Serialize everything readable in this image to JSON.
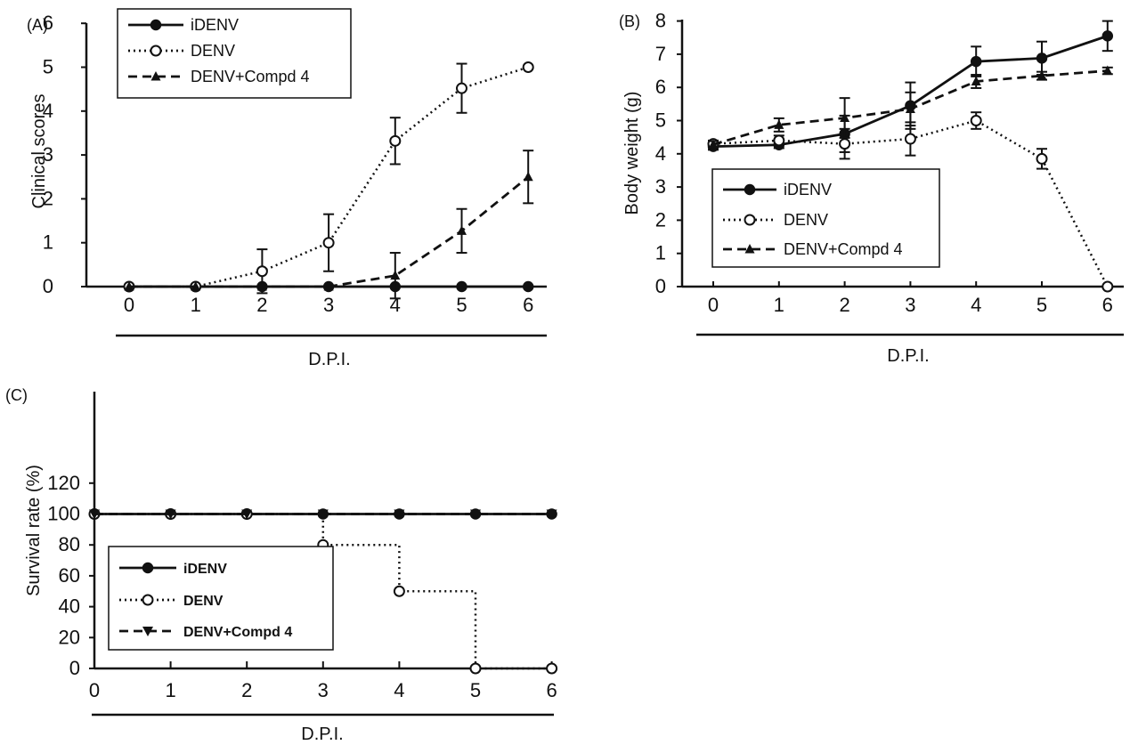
{
  "chart_data": [
    {
      "panel_label": "(A)",
      "type": "line",
      "xlabel": "D.P.I.",
      "ylabel": "Clinical scores",
      "x": [
        0,
        1,
        2,
        3,
        4,
        5,
        6
      ],
      "xticks": [
        "0",
        "1",
        "2",
        "3",
        "4",
        "5",
        "6"
      ],
      "xlim": [
        -0.5,
        6.5
      ],
      "ylim": [
        0,
        6
      ],
      "yticks": [
        "0",
        "1",
        "2",
        "3",
        "4",
        "5",
        "6"
      ],
      "legend_position": "top-left",
      "series": [
        {
          "name": "iDENV",
          "style": "solid",
          "marker": "filled-circle",
          "values": [
            0,
            0,
            0,
            0,
            0,
            0,
            0
          ],
          "errors": [
            0,
            0,
            0,
            0,
            0,
            0,
            0
          ]
        },
        {
          "name": "DENV",
          "style": "dotted",
          "marker": "open-circle",
          "values": [
            0,
            0,
            0.35,
            1.0,
            3.32,
            4.52,
            5.0
          ],
          "errors": [
            0,
            0,
            0.5,
            0.65,
            0.53,
            0.56,
            0
          ]
        },
        {
          "name": "DENV+Compd 4",
          "style": "dashed",
          "marker": "filled-triangle",
          "values": [
            0,
            0,
            0,
            0,
            0.25,
            1.27,
            2.5
          ],
          "errors": [
            0,
            0,
            0,
            0,
            0.52,
            0.5,
            0.6
          ]
        }
      ]
    },
    {
      "panel_label": "(B)",
      "type": "line",
      "xlabel": "D.P.I.",
      "ylabel": "Body weight (g)",
      "x": [
        0,
        1,
        2,
        3,
        4,
        5,
        6
      ],
      "xticks": [
        "0",
        "1",
        "2",
        "3",
        "4",
        "5",
        "6"
      ],
      "xlim": [
        -0.5,
        6.5
      ],
      "ylim": [
        0,
        8
      ],
      "yticks": [
        "0",
        "1",
        "2",
        "3",
        "4",
        "5",
        "6",
        "7",
        "8"
      ],
      "legend_position": "bottom-left",
      "series": [
        {
          "name": "iDENV",
          "style": "solid",
          "marker": "filled-circle",
          "values": [
            4.22,
            4.27,
            4.6,
            5.45,
            6.78,
            6.88,
            7.55
          ],
          "errors": [
            0.1,
            0.1,
            0.55,
            0.7,
            0.45,
            0.5,
            0.45
          ]
        },
        {
          "name": "DENV",
          "style": "dotted",
          "marker": "open-circle",
          "values": [
            4.3,
            4.4,
            4.3,
            4.45,
            5.0,
            3.85,
            0
          ],
          "errors": [
            0.1,
            0.15,
            0.45,
            0.5,
            0.25,
            0.3,
            0
          ]
        },
        {
          "name": "DENV+Compd 4",
          "style": "dashed",
          "marker": "filled-triangle",
          "values": [
            4.28,
            4.87,
            5.08,
            5.35,
            6.18,
            6.35,
            6.5
          ],
          "errors": [
            0.1,
            0.2,
            0.6,
            0.5,
            0.2,
            0.12,
            0.1
          ]
        }
      ]
    },
    {
      "panel_label": "(C)",
      "type": "line",
      "step": true,
      "xlabel": "D.P.I.",
      "ylabel": "Survival rate (%)",
      "x": [
        0,
        1,
        2,
        3,
        4,
        5,
        6
      ],
      "xticks": [
        "0",
        "1",
        "2",
        "3",
        "4",
        "5",
        "6"
      ],
      "xlim": [
        0,
        6.2
      ],
      "ylim": [
        0,
        120
      ],
      "yticks": [
        "0",
        "20",
        "40",
        "60",
        "80",
        "100",
        "120"
      ],
      "legend_position": "bottom-left",
      "series": [
        {
          "name": "iDENV",
          "style": "solid",
          "marker": "filled-circle",
          "values": [
            100,
            100,
            100,
            100,
            100,
            100,
            100
          ]
        },
        {
          "name": "DENV",
          "style": "dotted",
          "marker": "open-circle",
          "values": [
            100,
            100,
            100,
            80,
            50,
            0,
            0
          ]
        },
        {
          "name": "DENV+Compd 4",
          "style": "dashed",
          "marker": "filled-triangle-down",
          "values": [
            100,
            100,
            100,
            100,
            100,
            100,
            100
          ]
        }
      ]
    }
  ]
}
